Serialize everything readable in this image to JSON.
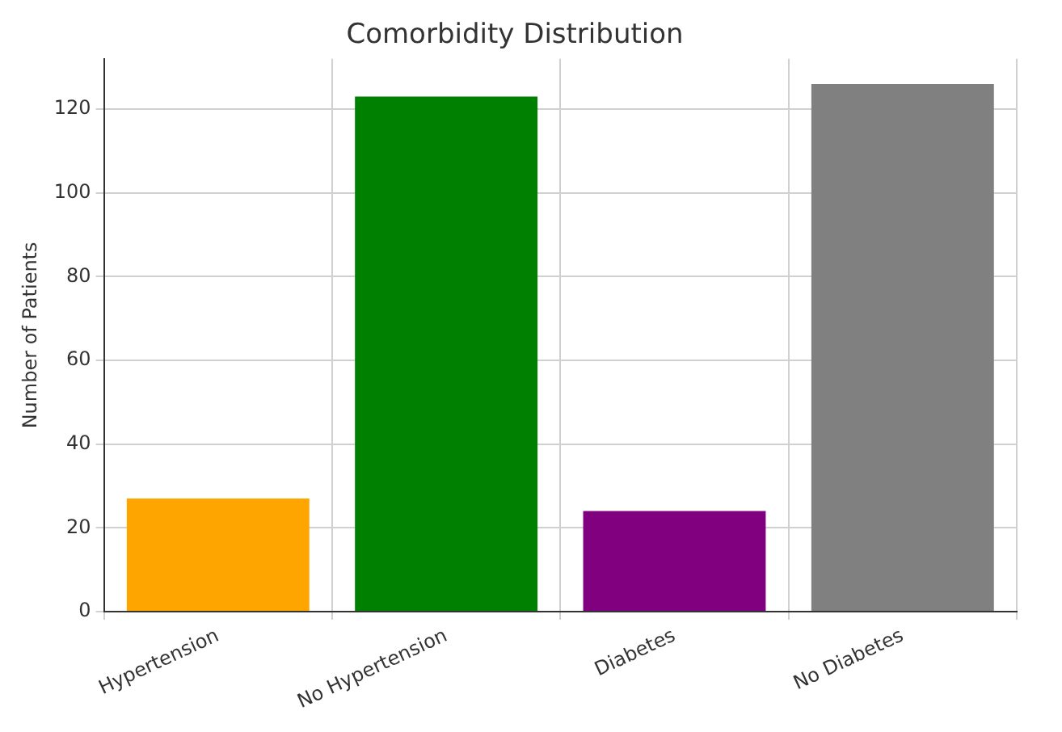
{
  "chart_data": {
    "type": "bar",
    "title": "Comorbidity Distribution",
    "ylabel": "Number of Patients",
    "categories": [
      "Hypertension",
      "No Hypertension",
      "Diabetes",
      "No Diabetes"
    ],
    "values": [
      27,
      123,
      24,
      126
    ],
    "colors": [
      "#ffa500",
      "#008000",
      "#800080",
      "#808080"
    ],
    "ylim": [
      0,
      132
    ],
    "yticks": [
      0,
      20,
      40,
      60,
      80,
      100,
      120
    ],
    "grid": true
  }
}
